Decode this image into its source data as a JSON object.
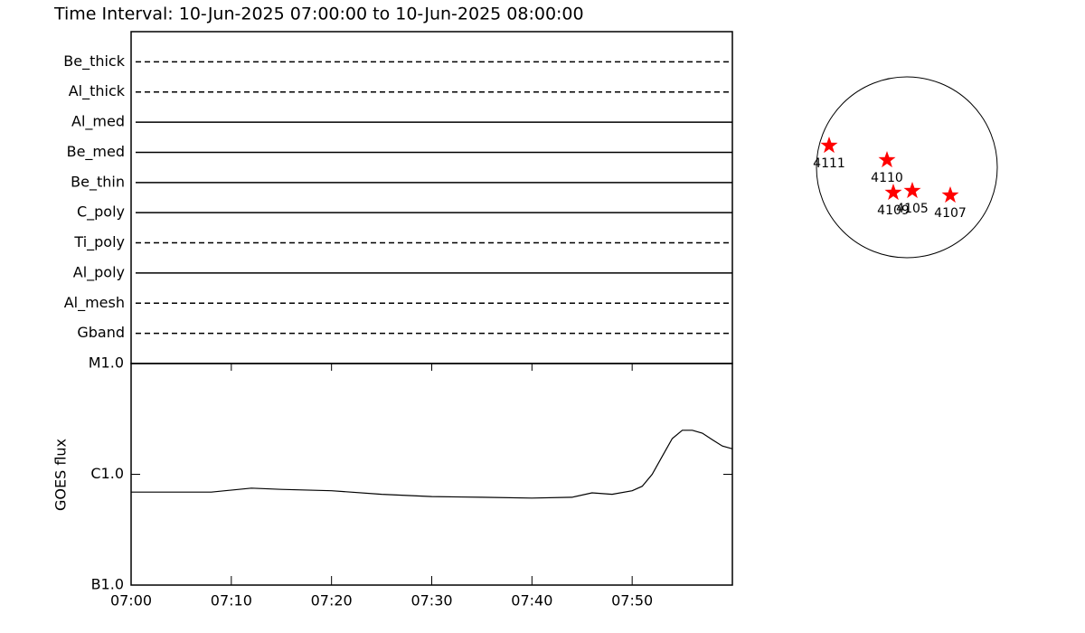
{
  "title": "Time Interval: 10-Jun-2025 07:00:00 to 10-Jun-2025 08:00:00",
  "chart_data": [
    {
      "type": "timeline",
      "categories": [
        "Be_thick",
        "Al_thick",
        "Al_med",
        "Be_med",
        "Be_thin",
        "C_poly",
        "Ti_poly",
        "Al_poly",
        "Al_mesh",
        "Gband"
      ],
      "styles": [
        "dashed",
        "dashed",
        "solid",
        "solid",
        "solid",
        "solid",
        "dashed",
        "solid",
        "dashed",
        "dashed"
      ]
    },
    {
      "type": "line",
      "y_label": "GOES flux",
      "log_scale": true,
      "x": [
        "07:00",
        "07:08",
        "07:12",
        "07:15",
        "07:20",
        "07:25",
        "07:30",
        "07:35",
        "07:40",
        "07:44",
        "07:46",
        "07:48",
        "07:50",
        "07:51",
        "07:52",
        "07:53",
        "07:54",
        "07:55",
        "07:56",
        "07:57",
        "07:58",
        "07:59",
        "08:00"
      ],
      "values": [
        6.9e-07,
        6.9e-07,
        7.5e-07,
        7.3e-07,
        7.1e-07,
        6.6e-07,
        6.3e-07,
        6.2e-07,
        6.1e-07,
        6.2e-07,
        6.8e-07,
        6.6e-07,
        7.1e-07,
        7.8e-07,
        1e-06,
        1.45e-06,
        2.1e-06,
        2.5e-06,
        2.5e-06,
        2.35e-06,
        2.05e-06,
        1.8e-06,
        1.7e-06
      ],
      "color": "#000000",
      "xlim": [
        "07:00",
        "08:00"
      ],
      "xticks": [
        "07:00",
        "07:10",
        "07:20",
        "07:30",
        "07:40",
        "07:50"
      ],
      "ylim": [
        1e-07,
        1e-05
      ],
      "yticks": [
        {
          "value": 1e-07,
          "label": "B1.0"
        },
        {
          "value": 1e-06,
          "label": "C1.0"
        },
        {
          "value": 1e-05,
          "label": "M1.0"
        }
      ]
    },
    {
      "type": "disk",
      "color": "#ff0000",
      "xlim": [
        -1,
        1
      ],
      "ylim": [
        -1,
        1
      ],
      "points": [
        {
          "label": "4111",
          "x": -0.86,
          "y": 0.24
        },
        {
          "label": "4110",
          "x": -0.22,
          "y": 0.08
        },
        {
          "label": "4109",
          "x": -0.15,
          "y": -0.28
        },
        {
          "label": "4105",
          "x": 0.06,
          "y": -0.26
        },
        {
          "label": "4107",
          "x": 0.48,
          "y": -0.31
        }
      ]
    }
  ]
}
